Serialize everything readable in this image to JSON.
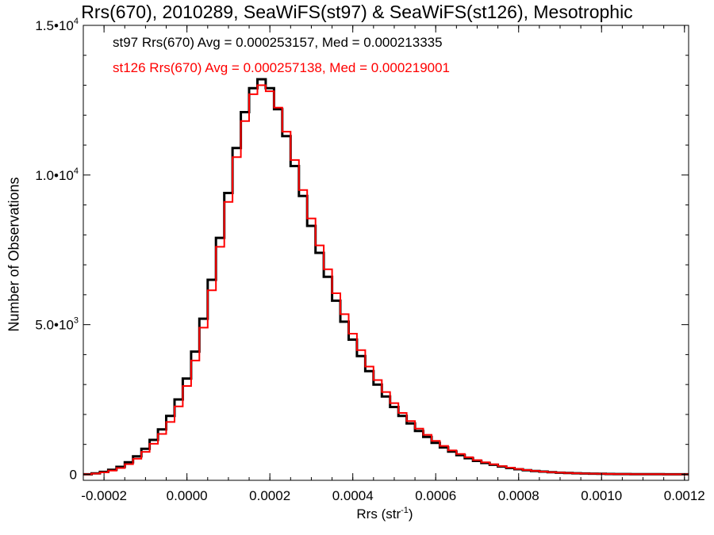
{
  "chart_data": {
    "type": "histogram-step",
    "title": "Rrs(670), 2010289, SeaWiFS(st97) & SeaWiFS(st126), Mesotrophic",
    "xlabel": {
      "text": "Rrs (str",
      "sup": "-1",
      "close": ")"
    },
    "ylabel": "Number of Observations",
    "xlim": [
      -0.00025,
      0.00121
    ],
    "ylim": [
      -200,
      15000
    ],
    "x_ticks": [
      {
        "value": -0.0002,
        "label": "-0.0002"
      },
      {
        "value": 0.0,
        "label": "0.0000"
      },
      {
        "value": 0.0002,
        "label": "0.0002"
      },
      {
        "value": 0.0004,
        "label": "0.0004"
      },
      {
        "value": 0.0006,
        "label": "0.0006"
      },
      {
        "value": 0.0008,
        "label": "0.0008"
      },
      {
        "value": 0.001,
        "label": "0.0010"
      },
      {
        "value": 0.0012,
        "label": "0.0012"
      }
    ],
    "y_ticks": [
      {
        "value": 0,
        "mant": "0",
        "exp": ""
      },
      {
        "value": 5000,
        "mant": "5.0•10",
        "exp": "3"
      },
      {
        "value": 10000,
        "mant": "1.0•10",
        "exp": "4"
      },
      {
        "value": 15000,
        "mant": "1.5•10",
        "exp": "4"
      }
    ],
    "annotations": [
      "st97 Rrs(670) Avg = 0.000253157, Med = 0.000213335",
      "st126 Rrs(670) Avg = 0.000257138, Med = 0.000219001"
    ],
    "series": [
      {
        "color": "#000000",
        "x": [
          -0.00025,
          -0.00023,
          -0.00021,
          -0.00019,
          -0.00017,
          -0.00015,
          -0.00013,
          -0.00011,
          -9e-05,
          -7e-05,
          -5e-05,
          -3e-05,
          -1e-05,
          1e-05,
          3e-05,
          5e-05,
          7e-05,
          9e-05,
          0.00011,
          0.00013,
          0.00015,
          0.00017,
          0.00019,
          0.00021,
          0.00023,
          0.00025,
          0.00027,
          0.00029,
          0.00031,
          0.00033,
          0.00035,
          0.00037,
          0.00039,
          0.00041,
          0.00043,
          0.00045,
          0.00047,
          0.00049,
          0.00051,
          0.00053,
          0.00055,
          0.00057,
          0.00059,
          0.00061,
          0.00063,
          0.00065,
          0.00067,
          0.00069,
          0.00071,
          0.00073,
          0.00075,
          0.00077,
          0.00079,
          0.00081,
          0.00083,
          0.00085,
          0.00087,
          0.00089,
          0.00091,
          0.00093,
          0.00095,
          0.00097,
          0.00099,
          0.00101,
          0.00103,
          0.00105,
          0.00107,
          0.00109,
          0.00111,
          0.00113,
          0.00115,
          0.00117,
          0.00119,
          0.00121
        ],
        "y": [
          0,
          30,
          80,
          150,
          250,
          400,
          600,
          850,
          1150,
          1500,
          1950,
          2500,
          3200,
          4100,
          5200,
          6500,
          7900,
          9400,
          10900,
          12100,
          12900,
          13200,
          12900,
          12200,
          11300,
          10300,
          9300,
          8300,
          7400,
          6600,
          5800,
          5100,
          4500,
          3950,
          3450,
          3000,
          2600,
          2250,
          1950,
          1700,
          1450,
          1250,
          1050,
          900,
          760,
          640,
          540,
          450,
          380,
          320,
          260,
          210,
          170,
          140,
          110,
          90,
          70,
          55,
          45,
          35,
          28,
          22,
          17,
          13,
          10,
          8,
          6,
          5,
          4,
          3,
          2,
          2,
          1,
          0
        ]
      },
      {
        "color": "#ff0000",
        "x": [
          -0.00025,
          -0.00023,
          -0.00021,
          -0.00019,
          -0.00017,
          -0.00015,
          -0.00013,
          -0.00011,
          -9e-05,
          -7e-05,
          -5e-05,
          -3e-05,
          -1e-05,
          1e-05,
          3e-05,
          5e-05,
          7e-05,
          9e-05,
          0.00011,
          0.00013,
          0.00015,
          0.00017,
          0.00019,
          0.00021,
          0.00023,
          0.00025,
          0.00027,
          0.00029,
          0.00031,
          0.00033,
          0.00035,
          0.00037,
          0.00039,
          0.00041,
          0.00043,
          0.00045,
          0.00047,
          0.00049,
          0.00051,
          0.00053,
          0.00055,
          0.00057,
          0.00059,
          0.00061,
          0.00063,
          0.00065,
          0.00067,
          0.00069,
          0.00071,
          0.00073,
          0.00075,
          0.00077,
          0.00079,
          0.00081,
          0.00083,
          0.00085,
          0.00087,
          0.00089,
          0.00091,
          0.00093,
          0.00095,
          0.00097,
          0.00099,
          0.00101,
          0.00103,
          0.00105,
          0.00107,
          0.00109,
          0.00111,
          0.00113,
          0.00115,
          0.00117,
          0.00119,
          0.00121
        ],
        "y": [
          0,
          25,
          65,
          125,
          210,
          340,
          520,
          750,
          1020,
          1350,
          1750,
          2270,
          2950,
          3800,
          4900,
          6150,
          7600,
          9100,
          10600,
          11800,
          12700,
          13000,
          12800,
          12250,
          11450,
          10500,
          9500,
          8550,
          7650,
          6850,
          6050,
          5350,
          4700,
          4150,
          3600,
          3150,
          2750,
          2380,
          2050,
          1780,
          1530,
          1320,
          1120,
          950,
          800,
          680,
          570,
          475,
          400,
          335,
          275,
          225,
          180,
          145,
          115,
          92,
          72,
          56,
          45,
          36,
          28,
          22,
          17,
          13,
          10,
          8,
          6,
          5,
          4,
          3,
          2,
          2,
          1,
          0
        ]
      }
    ]
  }
}
